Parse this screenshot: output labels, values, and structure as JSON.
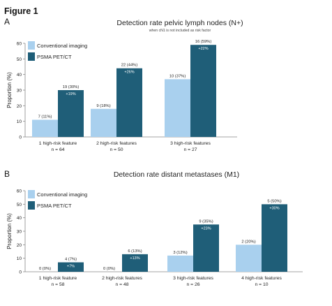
{
  "figure_title": "Figure 1",
  "colors": {
    "conventional": "#a9d0ee",
    "psma": "#1f5e78",
    "axis": "#888888",
    "text": "#222222"
  },
  "chart_data": [
    {
      "panel_label": "A",
      "type": "bar",
      "title": "Detection rate pelvic lymph nodes (N+)",
      "subtitle": "when cN1 is not included as risk factor",
      "ylabel": "Proportion (%)",
      "xlabel": "",
      "ylim": [
        0,
        60
      ],
      "yticks": [
        0,
        10,
        20,
        30,
        40,
        50,
        60
      ],
      "grid": false,
      "legend": "top-left",
      "categories": [
        "1 high-risk feature",
        "2 high-risk features",
        "3 high-risk features"
      ],
      "category_n": [
        "n = 64",
        "n = 50",
        "n = 27"
      ],
      "series": [
        {
          "name": "Conventional imaging",
          "values": [
            11,
            18,
            37
          ],
          "labels": [
            "7 (11%)",
            "9 (18%)",
            "10 (37%)"
          ],
          "diff_labels": [
            "",
            "",
            ""
          ]
        },
        {
          "name": "PSMA PET/CT",
          "values": [
            30,
            44,
            59
          ],
          "labels": [
            "19 (30%)",
            "22 (44%)",
            "16 (59%)"
          ],
          "diff_labels": [
            "+19%",
            "+26%",
            "+22%"
          ]
        }
      ]
    },
    {
      "panel_label": "B",
      "type": "bar",
      "title": "Detection rate distant metastases (M1)",
      "subtitle": "",
      "ylabel": "Proportion (%)",
      "xlabel": "",
      "ylim": [
        0,
        60
      ],
      "yticks": [
        0,
        10,
        20,
        30,
        40,
        50,
        60
      ],
      "grid": false,
      "legend": "top-left",
      "categories": [
        "1 high-risk feature",
        "2 high-risk features",
        "3 high-risk features",
        "4 high-risk features"
      ],
      "category_n": [
        "n = 58",
        "n = 48",
        "n = 26",
        "n = 10"
      ],
      "series": [
        {
          "name": "Conventional imaging",
          "values": [
            0,
            0,
            12,
            20
          ],
          "labels": [
            "0 (0%)",
            "0 (0%)",
            "3 (12%)",
            "2 (20%)"
          ],
          "diff_labels": [
            "",
            "",
            "",
            ""
          ]
        },
        {
          "name": "PSMA PET/CT",
          "values": [
            7,
            13,
            35,
            50
          ],
          "labels": [
            "4 (7%)",
            "6 (13%)",
            "9 (35%)",
            "5 (50%)"
          ],
          "diff_labels": [
            "+7%",
            "+13%",
            "+23%",
            "+30%"
          ]
        }
      ]
    }
  ]
}
